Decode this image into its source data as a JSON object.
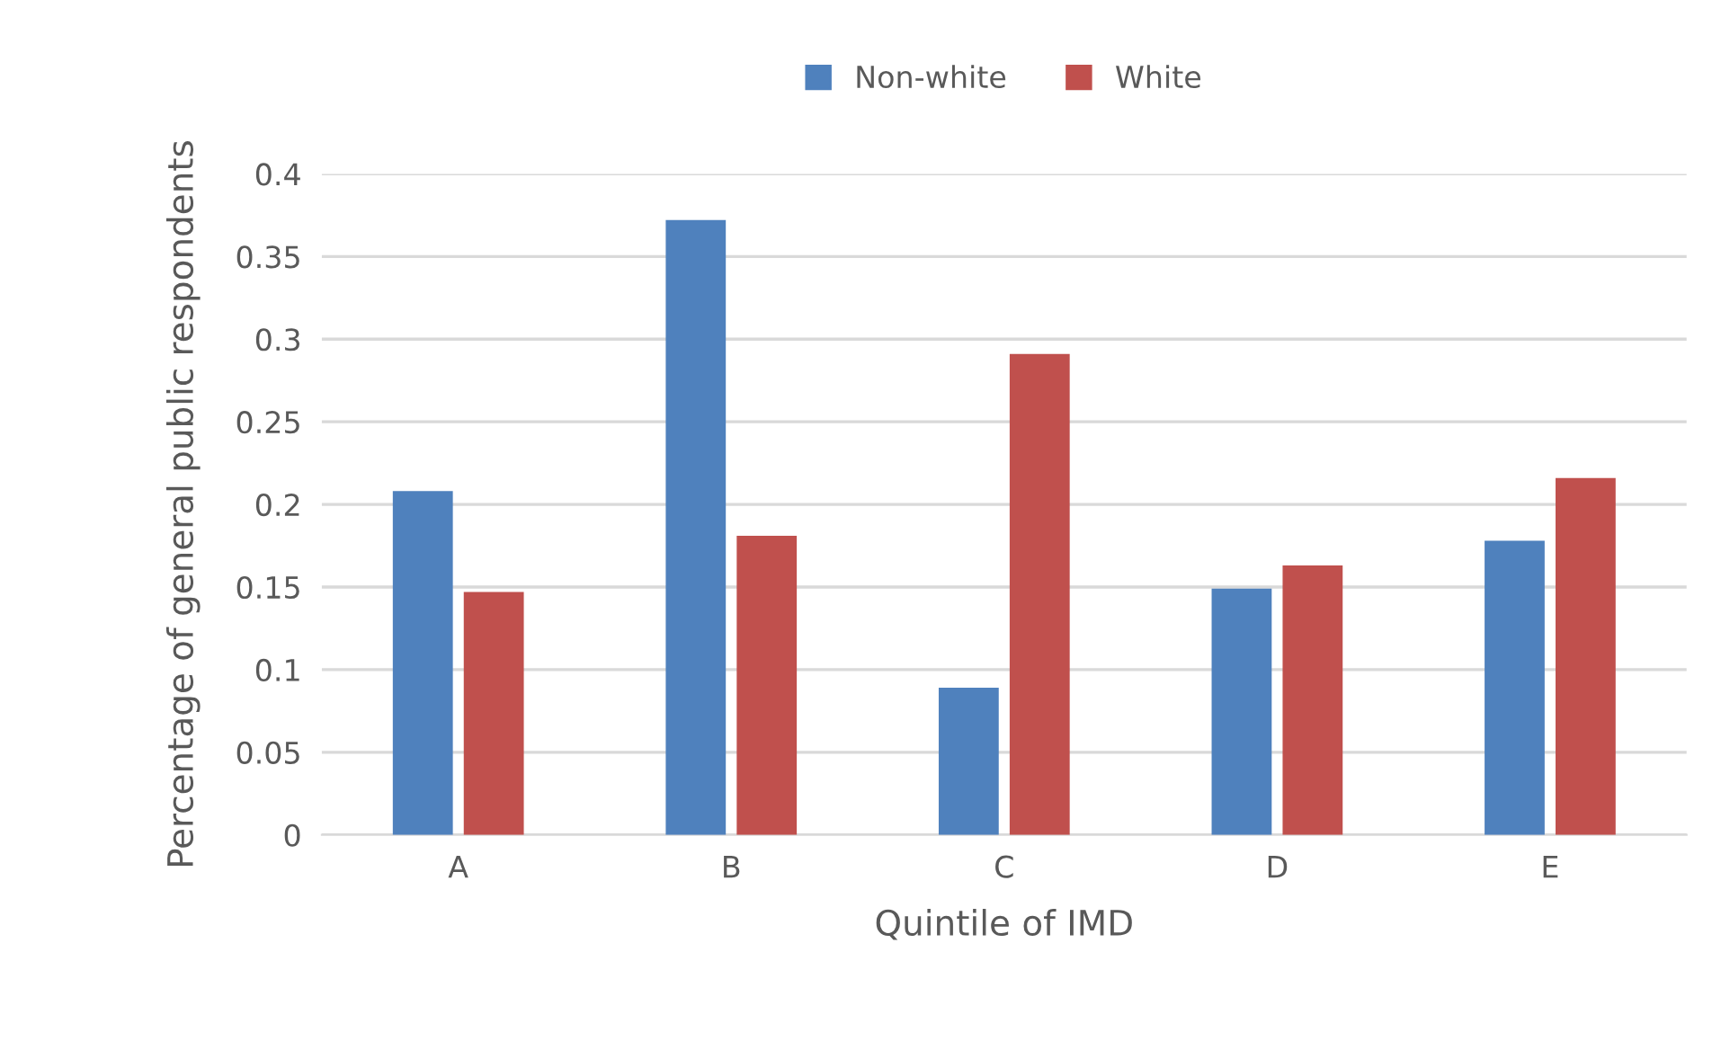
{
  "chart_data": {
    "type": "bar",
    "xlabel": "Quintile of IMD",
    "ylabel": "Percentage of general public respondents",
    "categories": [
      "A",
      "B",
      "C",
      "D",
      "E"
    ],
    "series": [
      {
        "name": "Non-white",
        "color": "#4f81bd",
        "values": [
          0.208,
          0.372,
          0.089,
          0.149,
          0.178
        ]
      },
      {
        "name": "White",
        "color": "#c0504d",
        "values": [
          0.147,
          0.181,
          0.291,
          0.163,
          0.216
        ]
      }
    ],
    "ylim": [
      0,
      0.4
    ],
    "yticks": [
      0,
      0.05,
      0.1,
      0.15,
      0.2,
      0.25,
      0.3,
      0.35,
      0.4
    ],
    "grid": "y",
    "legend": "top"
  }
}
